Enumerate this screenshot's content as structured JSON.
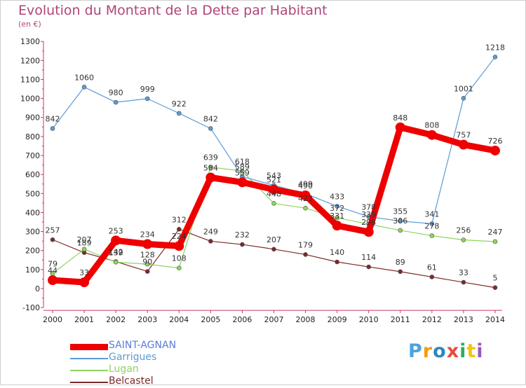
{
  "header": {
    "title": "Evolution du Montant de la Dette par Habitant",
    "subtitle": "(en €)"
  },
  "logo": {
    "letters": [
      "P",
      "r",
      "o",
      "x",
      "i",
      "t",
      "i"
    ],
    "colors": [
      "#4aa3df",
      "#f39c12",
      "#2e86c1",
      "#e74c3c",
      "#27ae60",
      "#f1c40f",
      "#9b59b6"
    ]
  },
  "chart_data": {
    "type": "line",
    "title": "Evolution du Montant de la Dette par Habitant",
    "ylabel": "(en €)",
    "xlabel": "",
    "x": [
      "2000",
      "2001",
      "2002",
      "2003",
      "2004",
      "2005",
      "2006",
      "2007",
      "2008",
      "2009",
      "2010",
      "2011",
      "2012",
      "2013",
      "2014"
    ],
    "ylim": [
      -100,
      1300
    ],
    "yticks": [
      "-100",
      "0",
      "100",
      "200",
      "300",
      "400",
      "500",
      "600",
      "700",
      "800",
      "900",
      "1000",
      "1100",
      "1200",
      "1300"
    ],
    "grid": false,
    "legend_position": "bottom-left",
    "series": [
      {
        "name": "SAINT-AGNAN",
        "color": "#ee0000",
        "values": [
          44,
          33,
          253,
          234,
          224,
          584,
          559,
          521,
          490,
          331,
          298,
          848,
          808,
          757,
          726
        ],
        "labels": [
          "44",
          "33",
          "253",
          "234",
          "224",
          "584",
          "559",
          "521",
          "490",
          "331",
          "298",
          "848",
          "808",
          "757",
          "726"
        ]
      },
      {
        "name": "Garrigues",
        "color": "#5b9bd5",
        "values": [
          842,
          1060,
          980,
          999,
          922,
          842,
          589,
          543,
          499,
          433,
          378,
          355,
          341,
          1001,
          1218
        ],
        "labels": [
          "842",
          "1060",
          "980",
          "999",
          "922",
          "842",
          "589",
          "543",
          "499",
          "433",
          "378",
          "355",
          "341",
          "1001",
          "1218"
        ]
      },
      {
        "name": "Lugan",
        "color": "#8fd35e",
        "values": [
          79,
          207,
          139,
          128,
          108,
          639,
          618,
          448,
          423,
          372,
          339,
          306,
          278,
          256,
          247
        ],
        "labels": [
          "79",
          "207",
          "139",
          "128",
          "108",
          "639",
          "618",
          "448",
          "423",
          "372",
          "339",
          "306",
          "278",
          "256",
          "247"
        ]
      },
      {
        "name": "Belcastel",
        "color": "#7b2a2a",
        "values": [
          257,
          189,
          142,
          90,
          312,
          249,
          232,
          207,
          179,
          140,
          114,
          89,
          61,
          33,
          5
        ],
        "labels": [
          "257",
          "189",
          "142",
          "90",
          "312",
          "249",
          "232",
          "207",
          "179",
          "140",
          "114",
          "89",
          "61",
          "33",
          "5"
        ]
      }
    ]
  }
}
